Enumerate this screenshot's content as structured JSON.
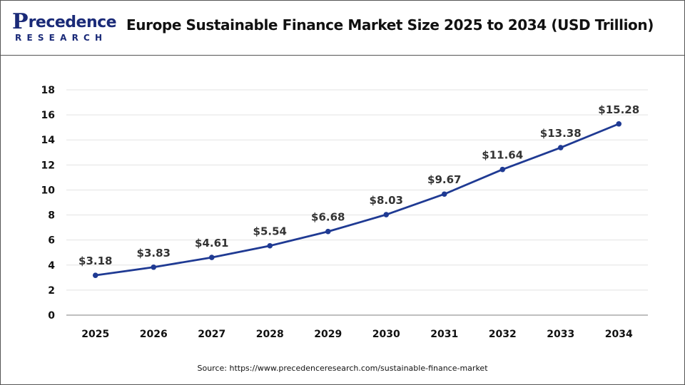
{
  "brand": {
    "logo_top_letter": "P",
    "logo_top_rest": "recedence",
    "logo_bottom": "RESEARCH",
    "color": "#1a2a78"
  },
  "header": {
    "title": "Europe Sustainable Finance Market Size 2025 to 2034 (USD Trillion)"
  },
  "source": "Source:  https://www.precedenceresearch.com/sustainable-finance-market",
  "chart_data": {
    "type": "line",
    "title": "Europe Sustainable Finance Market Size 2025 to 2034 (USD Trillion)",
    "xlabel": "",
    "ylabel": "",
    "x": [
      "2025",
      "2026",
      "2027",
      "2028",
      "2029",
      "2030",
      "2031",
      "2032",
      "2033",
      "2034"
    ],
    "series": [
      {
        "values": [
          3.18,
          3.83,
          4.61,
          5.54,
          6.68,
          8.03,
          9.67,
          11.64,
          13.38,
          15.28
        ],
        "labels": [
          "$3.18",
          "$3.83",
          "$4.61",
          "$5.54",
          "$6.68",
          "$8.03",
          "$9.67",
          "$11.64",
          "$13.38",
          "$15.28"
        ],
        "color": "#1f3a93"
      }
    ],
    "ylim": [
      0,
      18
    ],
    "yticks": [
      0,
      2,
      4,
      6,
      8,
      10,
      12,
      14,
      16,
      18
    ],
    "grid": true,
    "legend": "none"
  }
}
